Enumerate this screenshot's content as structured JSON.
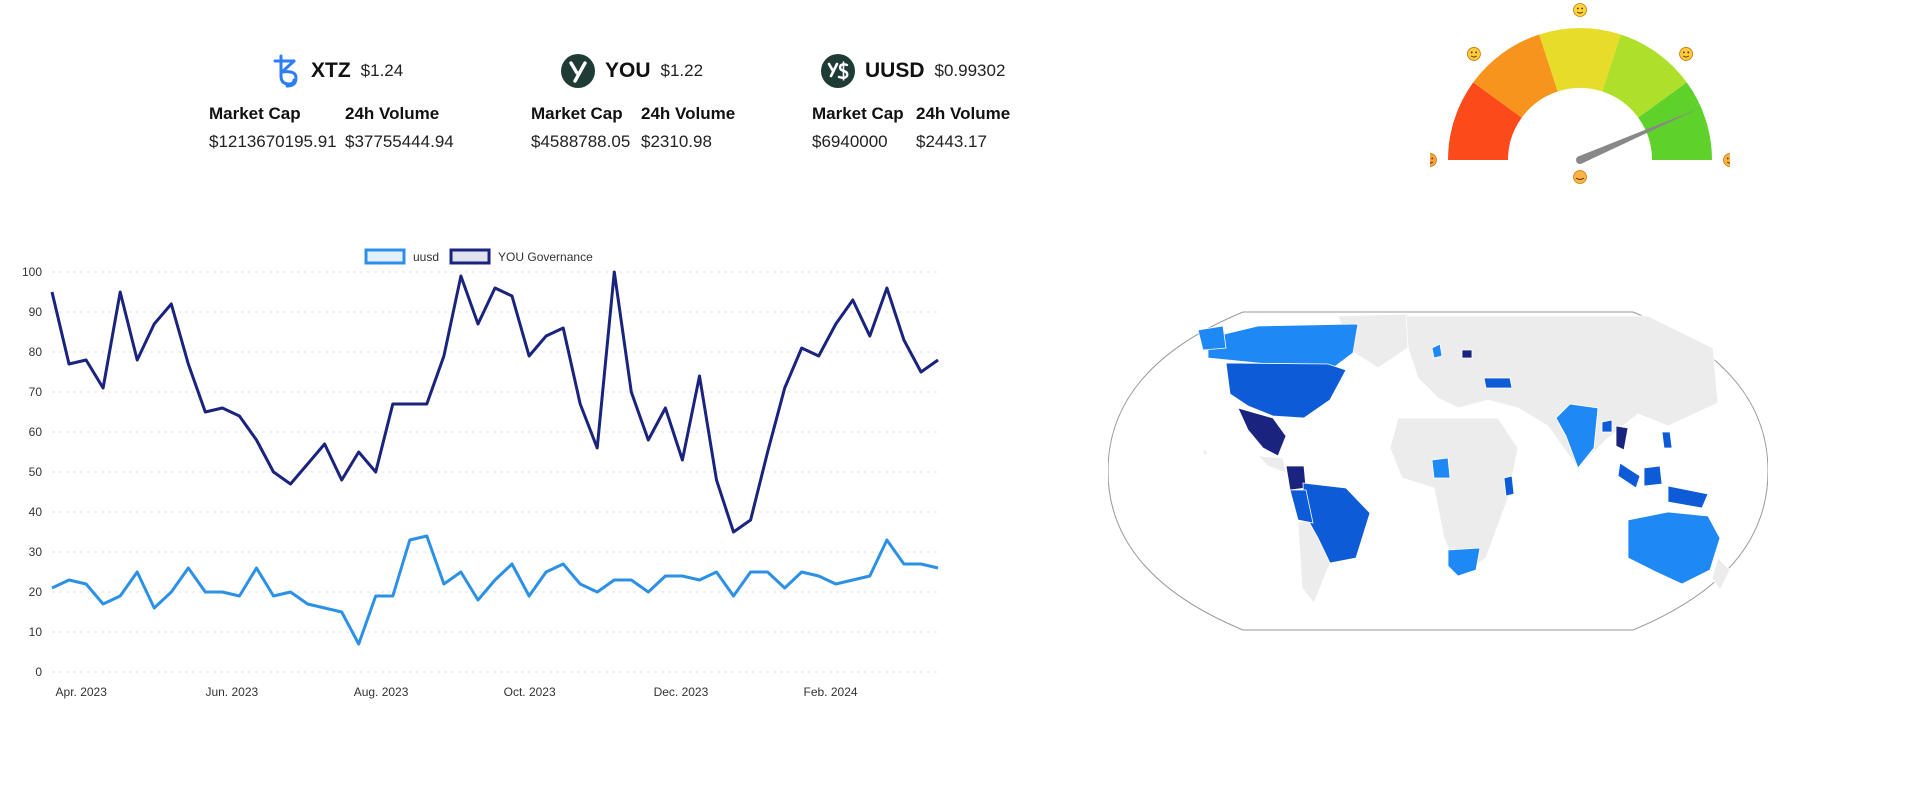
{
  "coins": [
    {
      "symbol": "XTZ",
      "price": "$1.24",
      "market_cap_label": "Market Cap",
      "market_cap": "$1213670195.91",
      "volume_label": "24h Volume",
      "volume": "$37755444.94",
      "icon": "tezos-logo-icon"
    },
    {
      "symbol": "YOU",
      "price": "$1.22",
      "market_cap_label": "Market Cap",
      "market_cap": "$4588788.05",
      "volume_label": "24h Volume",
      "volume": "$2310.98",
      "icon": "you-logo-icon"
    },
    {
      "symbol": "UUSD",
      "price": "$0.99302",
      "market_cap_label": "Market Cap",
      "market_cap": "$6940000",
      "volume_label": "24h Volume",
      "volume": "$2443.17",
      "icon": "uusd-logo-icon"
    }
  ],
  "gauge": {
    "icons": [
      "angry-face-icon",
      "worried-face-icon",
      "neutral-face-icon",
      "smiling-face-icon",
      "party-face-icon"
    ],
    "value_fraction": 0.87,
    "colors": [
      "#fc4a1a",
      "#f7941d",
      "#e8dc2a",
      "#aee02b",
      "#5fd12b"
    ]
  },
  "chart_data": {
    "type": "line",
    "title": "",
    "xlabel": "",
    "ylabel": "",
    "ylim": [
      0,
      100
    ],
    "yticks": [
      0,
      10,
      20,
      30,
      40,
      50,
      60,
      70,
      80,
      90,
      100
    ],
    "xticks": [
      {
        "label": "Apr. 2023",
        "index": 0.5
      },
      {
        "label": "Jun. 2023",
        "index": 9.3
      },
      {
        "label": "Aug. 2023",
        "index": 18
      },
      {
        "label": "Oct. 2023",
        "index": 26.8
      },
      {
        "label": "Dec. 2023",
        "index": 35.6
      },
      {
        "label": "Feb. 2024",
        "index": 44.4
      }
    ],
    "legend": "top-center",
    "grid": true,
    "series": [
      {
        "name": "uusd",
        "color": "#2b90e6",
        "values": [
          21,
          23,
          22,
          17,
          19,
          25,
          16,
          20,
          26,
          20,
          20,
          19,
          26,
          19,
          20,
          17,
          16,
          15,
          7,
          19,
          19,
          33,
          34,
          22,
          25,
          18,
          23,
          27,
          19,
          25,
          27,
          22,
          20,
          23,
          23,
          20,
          24,
          24,
          23,
          25,
          19,
          25,
          25,
          21,
          25,
          24,
          22,
          23,
          24,
          33,
          27,
          27,
          26
        ]
      },
      {
        "name": "YOU Governance",
        "color": "#1a237e",
        "values": [
          95,
          77,
          78,
          71,
          95,
          78,
          87,
          92,
          77,
          65,
          66,
          64,
          58,
          50,
          47,
          52,
          57,
          48,
          55,
          50,
          67,
          67,
          67,
          79,
          99,
          87,
          96,
          94,
          79,
          84,
          86,
          67,
          56,
          100,
          70,
          58,
          66,
          53,
          74,
          48,
          35,
          38,
          55,
          71,
          81,
          79,
          87,
          93,
          84,
          96,
          83,
          75,
          78
        ]
      }
    ]
  },
  "map": {
    "colors": {
      "light": "#1e88f5",
      "mid": "#0d5bd6",
      "dark": "#1a237e",
      "none": "#ececec"
    }
  }
}
